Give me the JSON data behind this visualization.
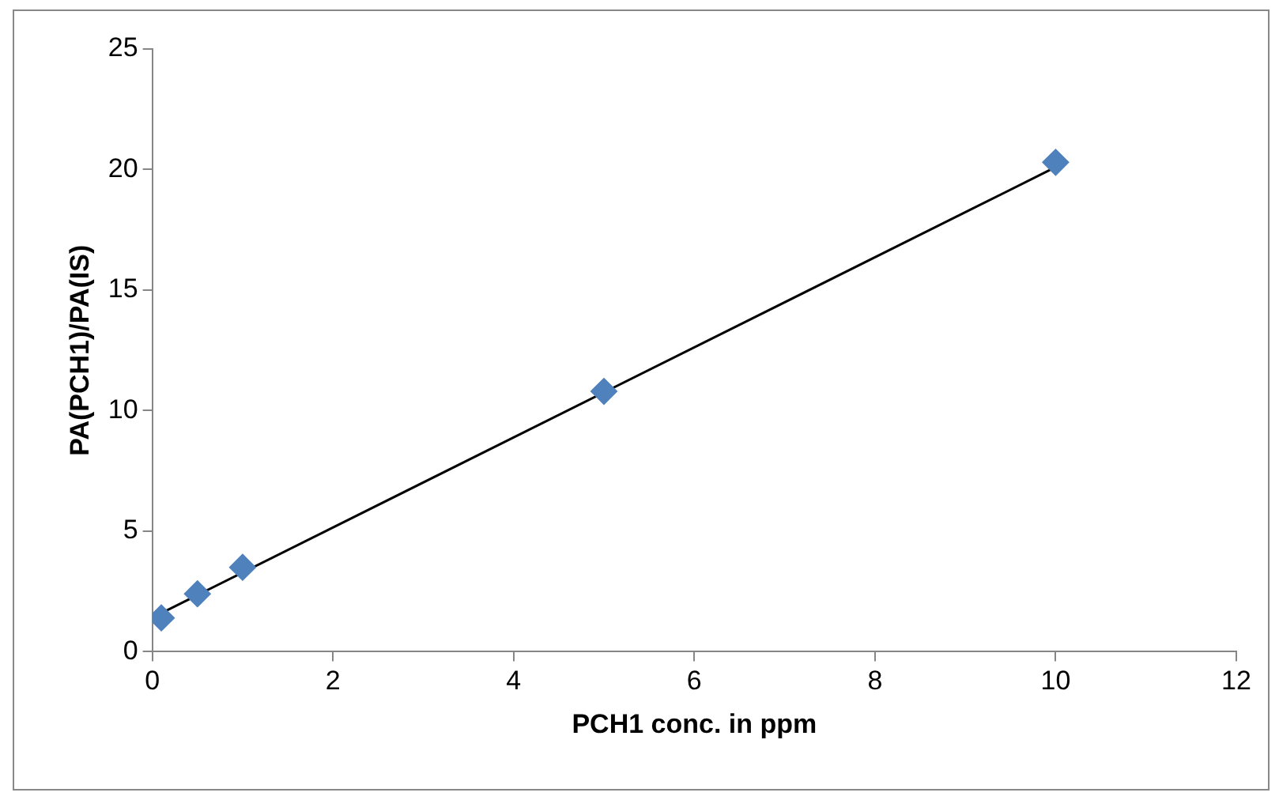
{
  "chart_data": {
    "type": "scatter",
    "xlabel": "PCH1 conc. in ppm",
    "ylabel": "PA(PCH1)/PA(IS)",
    "xlim": [
      0,
      12
    ],
    "xticks": [
      0,
      2,
      4,
      6,
      8,
      10,
      12
    ],
    "ylim": [
      0,
      25
    ],
    "yticks": [
      0,
      5,
      10,
      15,
      20,
      25
    ],
    "grid": false,
    "legend": false,
    "marker": "diamond",
    "series": [
      {
        "type": "scatter",
        "color": "#4f81bd",
        "x": [
          0.1,
          0.5,
          1,
          5,
          10
        ],
        "values": [
          1.4,
          2.4,
          3.5,
          10.8,
          20.3
        ]
      },
      {
        "type": "line",
        "color": "#000000",
        "marker": "none",
        "line_style": "solid",
        "x": [
          0.1,
          10
        ],
        "values": [
          1.6,
          20.1
        ]
      }
    ]
  }
}
